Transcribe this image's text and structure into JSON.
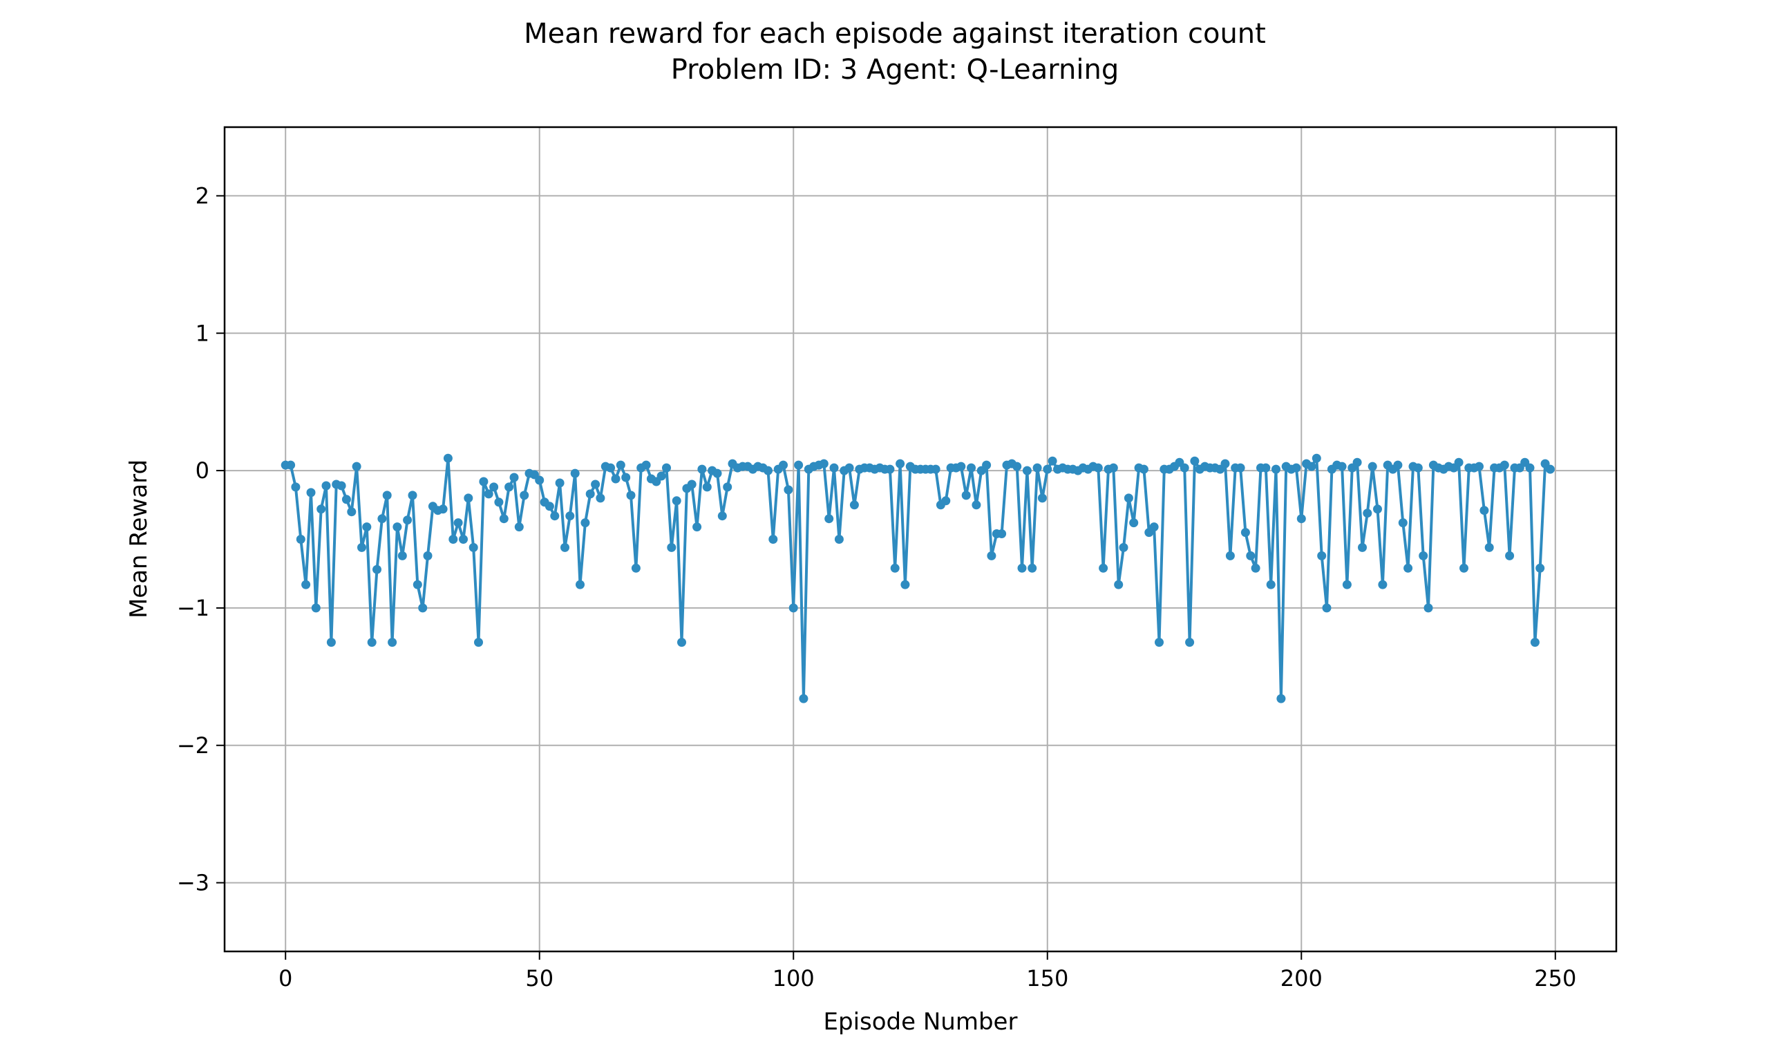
{
  "chart_data": {
    "type": "line",
    "title_line1": "Mean reward for each episode against iteration count",
    "title_line2": "Problem ID: 3 Agent: Q-Learning",
    "xlabel": "Episode Number",
    "ylabel": "Mean Reward",
    "xlim": [
      -12,
      262
    ],
    "ylim": [
      -3.5,
      2.5
    ],
    "xticks": [
      0,
      50,
      100,
      150,
      200,
      250
    ],
    "yticks": [
      -3,
      -2,
      -1,
      0,
      1,
      2
    ],
    "xtick_labels": [
      "0",
      "50",
      "100",
      "150",
      "200",
      "250"
    ],
    "ytick_labels": [
      "−3",
      "−2",
      "−1",
      "0",
      "1",
      "2"
    ],
    "grid": true,
    "line_color": "#2e8bc0",
    "marker": "circle",
    "x_start": 0,
    "series": [
      {
        "values": [
          0.04,
          0.04,
          -0.12,
          -0.5,
          -0.83,
          -0.16,
          -1.0,
          -0.28,
          -0.11,
          -1.25,
          -0.1,
          -0.11,
          -0.21,
          -0.3,
          0.03,
          -0.56,
          -0.41,
          -1.25,
          -0.72,
          -0.35,
          -0.18,
          -1.25,
          -0.41,
          -0.62,
          -0.36,
          -0.18,
          -0.83,
          -1.0,
          -0.62,
          -0.26,
          -0.29,
          -0.28,
          0.09,
          -0.5,
          -0.38,
          -0.5,
          -0.2,
          -0.56,
          -1.25,
          -0.08,
          -0.17,
          -0.12,
          -0.23,
          -0.35,
          -0.12,
          -0.05,
          -0.41,
          -0.18,
          -0.02,
          -0.03,
          -0.07,
          -0.23,
          -0.26,
          -0.33,
          -0.09,
          -0.56,
          -0.33,
          -0.02,
          -0.83,
          -0.38,
          -0.17,
          -0.1,
          -0.2,
          0.03,
          0.02,
          -0.06,
          0.04,
          -0.05,
          -0.18,
          -0.71,
          0.02,
          0.04,
          -0.06,
          -0.08,
          -0.04,
          0.02,
          -0.56,
          -0.22,
          -1.25,
          -0.13,
          -0.1,
          -0.41,
          0.01,
          -0.12,
          0.0,
          -0.02,
          -0.33,
          -0.12,
          0.05,
          0.02,
          0.03,
          0.03,
          0.01,
          0.03,
          0.02,
          0.0,
          -0.5,
          0.01,
          0.04,
          -0.14,
          -1.0,
          0.04,
          -1.66,
          0.01,
          0.03,
          0.04,
          0.05,
          -0.35,
          0.02,
          -0.5,
          0.0,
          0.02,
          -0.25,
          0.01,
          0.02,
          0.02,
          0.01,
          0.02,
          0.01,
          0.01,
          -0.71,
          0.05,
          -0.83,
          0.03,
          0.01,
          0.01,
          0.01,
          0.01,
          0.01,
          -0.25,
          -0.22,
          0.02,
          0.02,
          0.03,
          -0.18,
          0.02,
          -0.25,
          0.0,
          0.04,
          -0.62,
          -0.46,
          -0.46,
          0.04,
          0.05,
          0.03,
          -0.71,
          0.0,
          -0.71,
          0.02,
          -0.2,
          0.01,
          0.07,
          0.01,
          0.02,
          0.01,
          0.01,
          0.0,
          0.02,
          0.01,
          0.03,
          0.02,
          -0.71,
          0.01,
          0.02,
          -0.83,
          -0.56,
          -0.2,
          -0.38,
          0.02,
          0.01,
          -0.45,
          -0.41,
          -1.25,
          0.01,
          0.01,
          0.03,
          0.06,
          0.02,
          -1.25,
          0.07,
          0.01,
          0.03,
          0.02,
          0.02,
          0.01,
          0.05,
          -0.62,
          0.02,
          0.02,
          -0.45,
          -0.62,
          -0.71,
          0.02,
          0.02,
          -0.83,
          0.01,
          -1.66,
          0.03,
          0.01,
          0.02,
          -0.35,
          0.05,
          0.03,
          0.09,
          -0.62,
          -1.0,
          0.01,
          0.04,
          0.03,
          -0.83,
          0.02,
          0.06,
          -0.56,
          -0.31,
          0.03,
          -0.28,
          -0.83,
          0.04,
          0.01,
          0.04,
          -0.38,
          -0.71,
          0.03,
          0.02,
          -0.62,
          -1.0,
          0.04,
          0.02,
          0.01,
          0.03,
          0.02,
          0.06,
          -0.71,
          0.02,
          0.02,
          0.03,
          -0.29,
          -0.56,
          0.02,
          0.02,
          0.04,
          -0.62,
          0.02,
          0.02,
          0.06,
          0.02,
          -1.25,
          -0.71,
          0.05,
          0.01
        ]
      }
    ]
  }
}
